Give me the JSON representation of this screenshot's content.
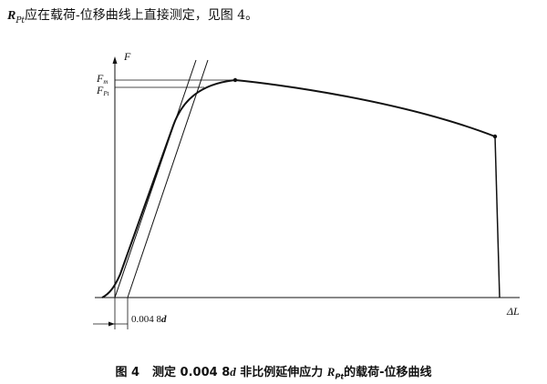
{
  "intro": {
    "symbol": "R",
    "symbol_sub": "Pt",
    "text": "应在载荷-位移曲线上直接测定，见图 4。"
  },
  "figure": {
    "y_axis_label": "F",
    "x_axis_label": "ΔL",
    "fm_label": "F",
    "fm_sub": "m",
    "fpt_label": "F",
    "fpt_sub": "Pt",
    "offset_label": "0.004 8",
    "offset_var": "d"
  },
  "caption": {
    "figure_no": "图 4",
    "text_before": "测定 0.004 8",
    "var": "d",
    "text_middle": " 非比例延伸应力 ",
    "symbol": "R",
    "symbol_sub": "Pt",
    "text_after": "的载荷-位移曲线"
  }
}
